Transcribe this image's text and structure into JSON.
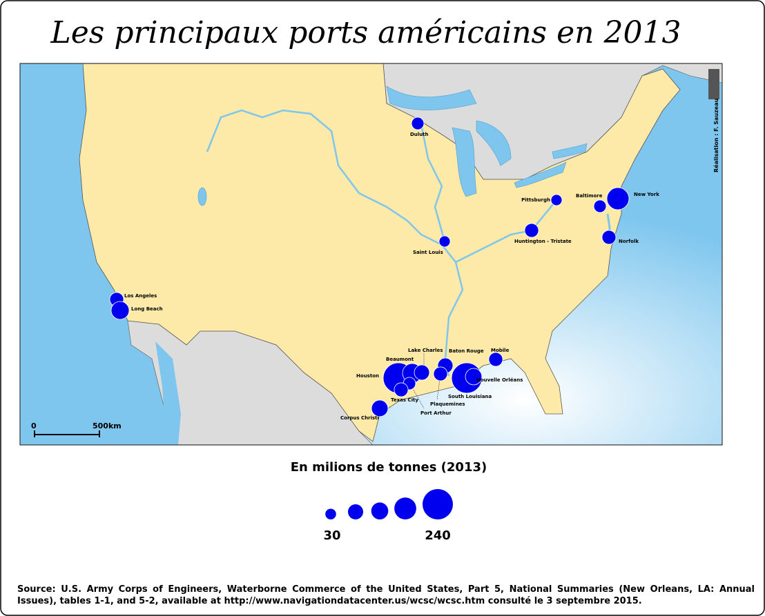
{
  "title": "Les principaux ports américains en 2013",
  "credit": "Réalisation : F. Sauzeau",
  "scale_bar": {
    "start": "0",
    "end": "500km"
  },
  "ports": [
    {
      "name": "Duluth",
      "tonnage": 40
    },
    {
      "name": "Pittsburgh",
      "tonnage": 32
    },
    {
      "name": "Baltimore",
      "tonnage": 40
    },
    {
      "name": "New York",
      "tonnage": 127
    },
    {
      "name": "Norfolk",
      "tonnage": 50
    },
    {
      "name": "Huntington - Tristate",
      "tonnage": 50
    },
    {
      "name": "Saint Louis",
      "tonnage": 32
    },
    {
      "name": "Los Angeles",
      "tonnage": 50
    },
    {
      "name": "Long Beach",
      "tonnage": 84
    },
    {
      "name": "Houston",
      "tonnage": 240
    },
    {
      "name": "Beaumont",
      "tonnage": 97
    },
    {
      "name": "Lake Charles",
      "tonnage": 60
    },
    {
      "name": "Port Arthur",
      "tonnage": 40
    },
    {
      "name": "Texas City",
      "tonnage": 50
    },
    {
      "name": "Baton Rouge",
      "tonnage": 60
    },
    {
      "name": "Plaquemines",
      "tonnage": 50
    },
    {
      "name": "South Louisiana",
      "tonnage": 240
    },
    {
      "name": "Nouvelle Orléans",
      "tonnage": 71
    },
    {
      "name": "Mobile",
      "tonnage": 50
    },
    {
      "name": "Corpus Christi",
      "tonnage": 71
    }
  ],
  "legend": {
    "title": "En milions de tonnes (2013)",
    "values": [
      30,
      60,
      75,
      125,
      240
    ]
  },
  "source": "Source: U.S. Army Corps of Engineers, Waterborne Commerce of the United States, Part 5, National Summaries (New Orleans, LA: Annual Issues), tables 1-1, and 5-2, available at http://www.navigationdatacenter.us/wcsc/wcsc.htm consulté le 3 septembre 2015."
}
